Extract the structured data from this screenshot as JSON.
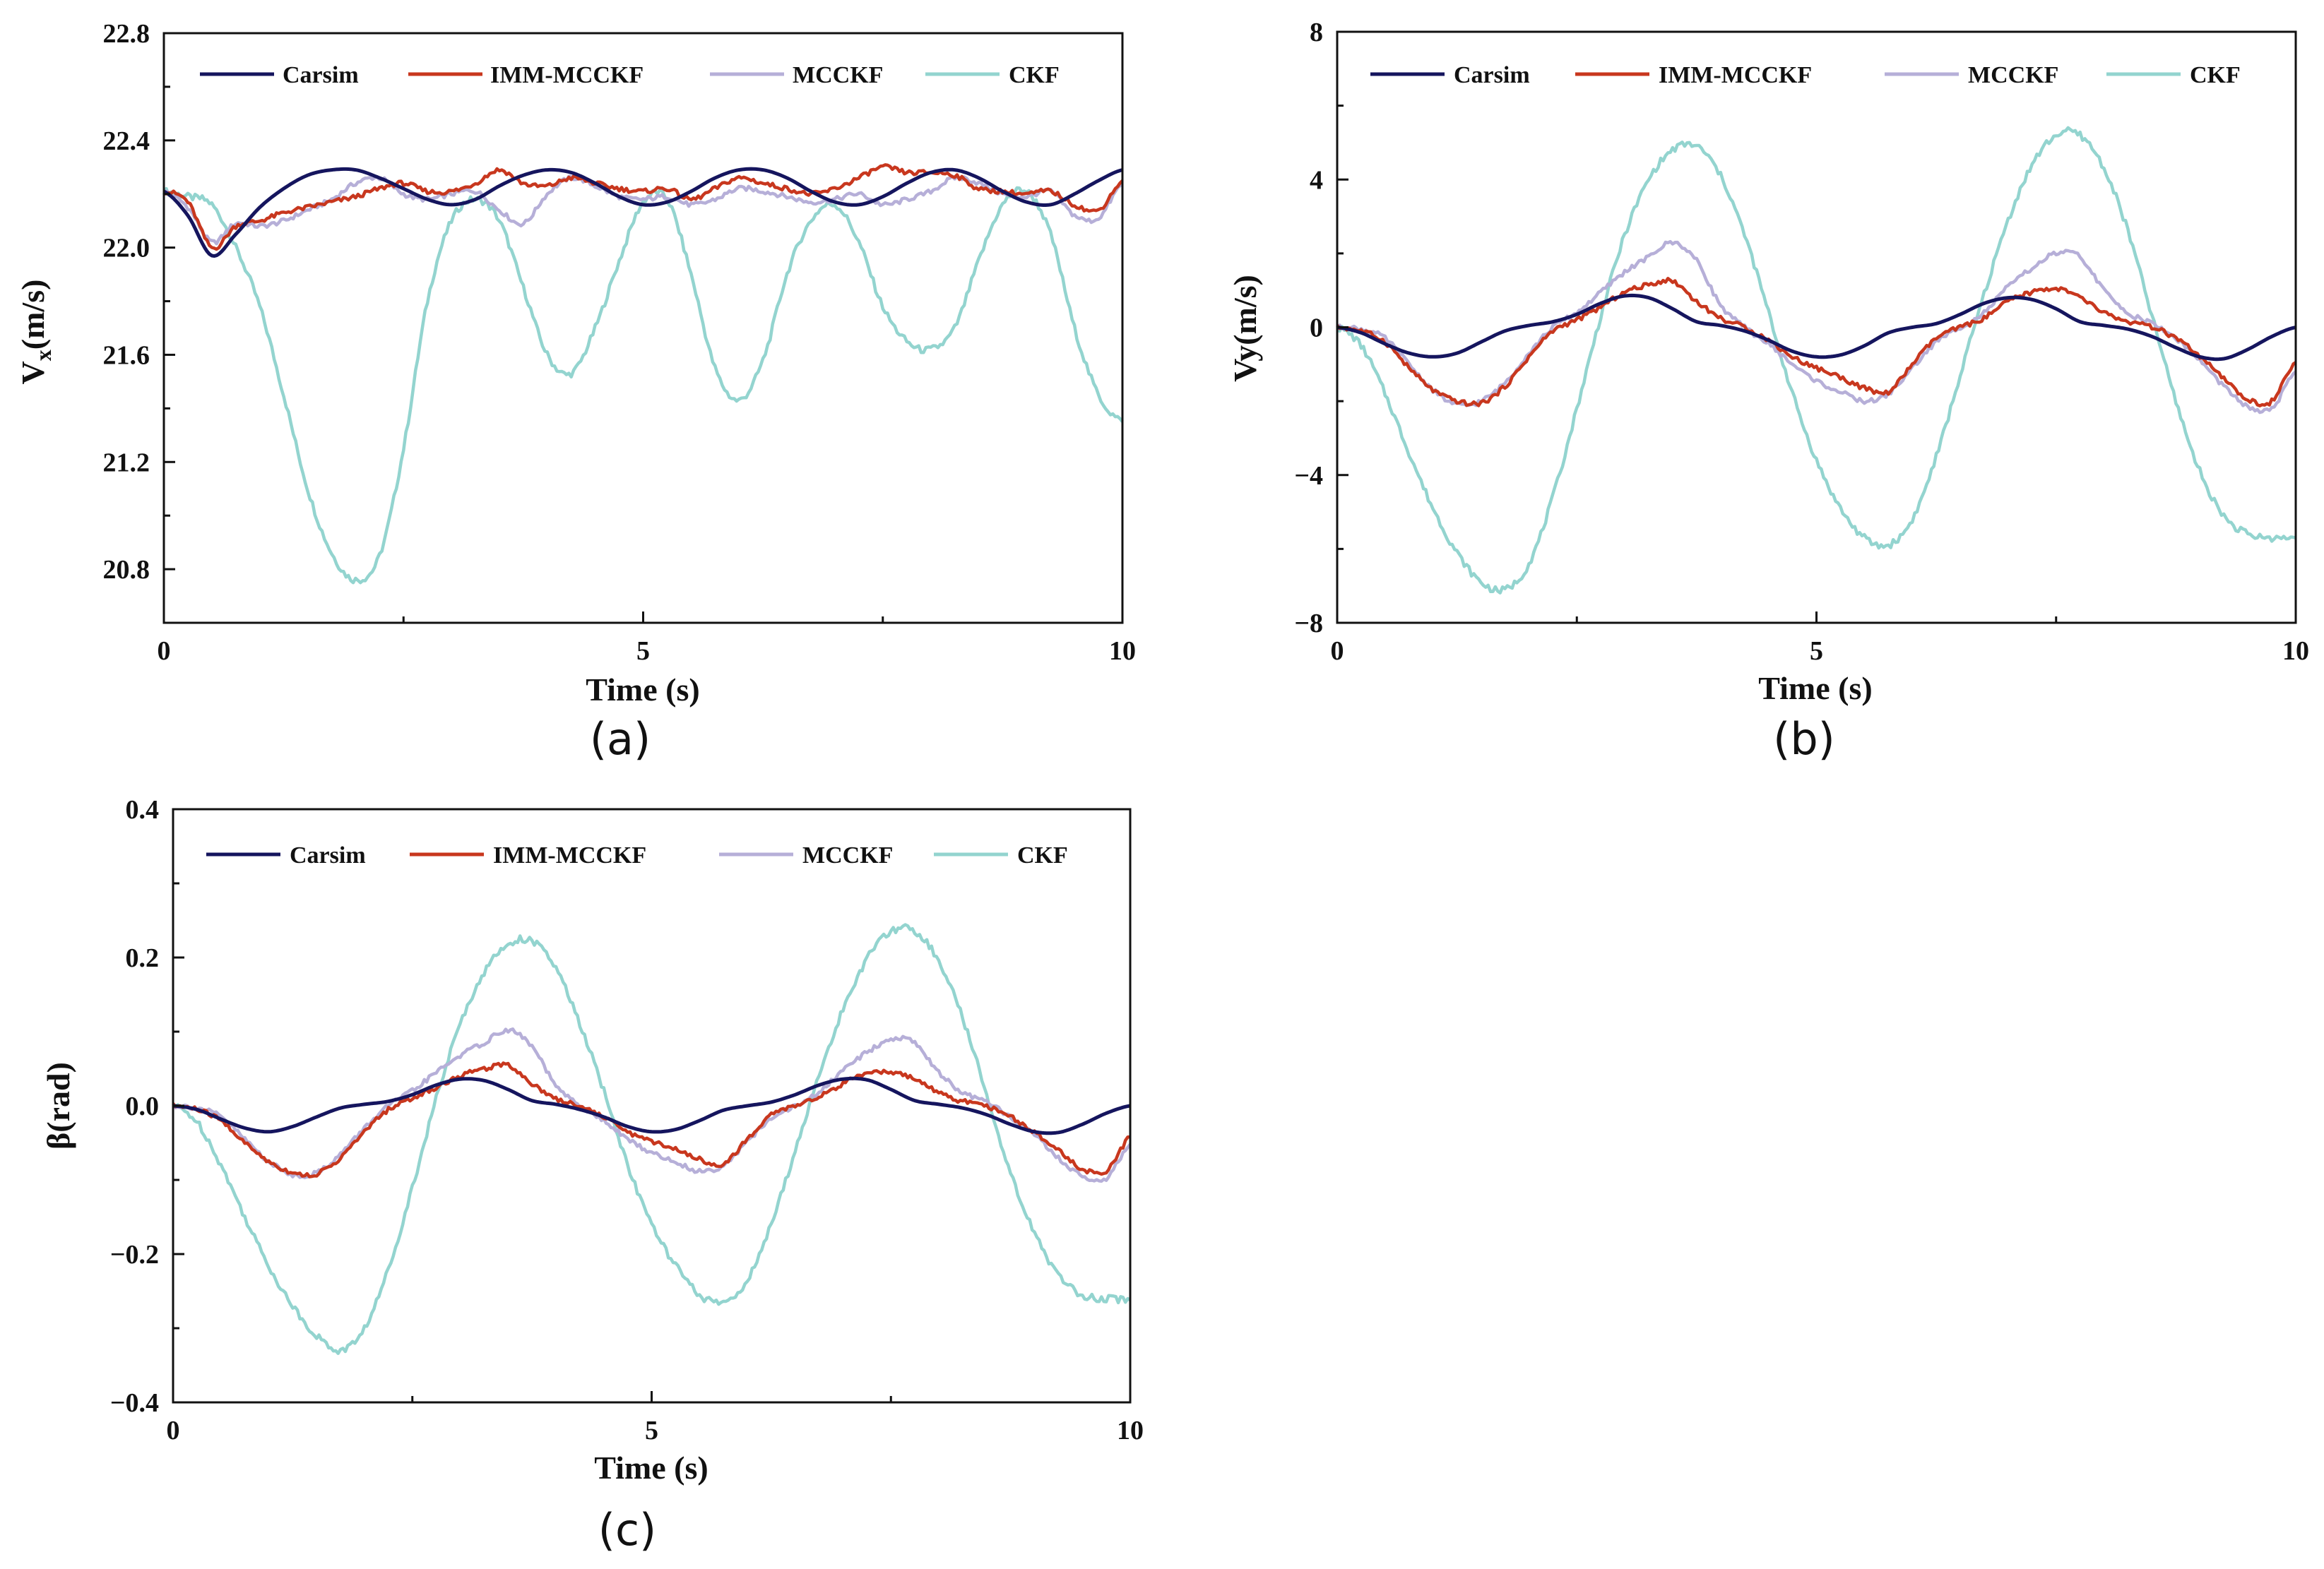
{
  "figure": {
    "colors": {
      "Carsim": "#15155e",
      "IMM-MCCKF": "#c8371e",
      "MCCKF": "#b6afd8",
      "CKF": "#93d4cf"
    }
  },
  "chart_data": [
    {
      "type": "line",
      "panel_label": "(a)",
      "xlabel": "Time (s)",
      "ylabel_main": "V",
      "ylabel_sub": "x",
      "ylabel_rest": "(m/s)",
      "xlim": [
        0,
        10
      ],
      "ylim": [
        20.6,
        22.8
      ],
      "xticks": [
        0,
        5,
        10
      ],
      "xtick_labels": [
        "0",
        "5",
        "10"
      ],
      "yticks": [
        20.8,
        21.2,
        21.6,
        22.0,
        22.4,
        22.8
      ],
      "ytick_labels": [
        "20.8",
        "21.2",
        "21.6",
        "22.0",
        "22.4",
        "22.8"
      ],
      "legend": [
        "Carsim",
        "IMM-MCCKF",
        "MCCKF",
        "CKF"
      ],
      "x": [
        0,
        0.25,
        0.5,
        0.75,
        1.0,
        1.25,
        1.5,
        1.75,
        2.0,
        2.25,
        2.5,
        2.75,
        3.0,
        3.25,
        3.5,
        3.75,
        4.0,
        4.25,
        4.5,
        4.75,
        5.0,
        5.25,
        5.5,
        5.75,
        6.0,
        6.25,
        6.5,
        6.75,
        7.0,
        7.25,
        7.5,
        7.75,
        8.0,
        8.25,
        8.5,
        8.75,
        9.0,
        9.25,
        9.5,
        9.75,
        10.0
      ],
      "series": [
        {
          "name": "Carsim",
          "values": [
            22.21,
            22.12,
            21.97,
            22.05,
            22.15,
            22.22,
            22.27,
            22.29,
            22.29,
            22.26,
            22.22,
            22.18,
            22.16,
            22.18,
            22.23,
            22.27,
            22.29,
            22.28,
            22.24,
            22.19,
            22.16,
            22.17,
            22.21,
            22.26,
            22.29,
            22.29,
            22.26,
            22.21,
            22.17,
            22.16,
            22.19,
            22.24,
            22.28,
            22.29,
            22.26,
            22.21,
            22.17,
            22.16,
            22.2,
            22.25,
            22.29
          ]
        },
        {
          "name": "IMM-MCCKF",
          "values": [
            22.21,
            22.17,
            22.0,
            22.08,
            22.1,
            22.13,
            22.15,
            22.17,
            22.19,
            22.22,
            22.24,
            22.21,
            22.21,
            22.24,
            22.29,
            22.24,
            22.23,
            22.26,
            22.24,
            22.22,
            22.21,
            22.22,
            22.18,
            22.22,
            22.26,
            22.24,
            22.22,
            22.2,
            22.22,
            22.26,
            22.3,
            22.28,
            22.28,
            22.27,
            22.22,
            22.21,
            22.2,
            22.21,
            22.16,
            22.14,
            22.25
          ]
        },
        {
          "name": "MCCKF",
          "values": [
            22.21,
            22.15,
            22.02,
            22.09,
            22.08,
            22.1,
            22.14,
            22.18,
            22.24,
            22.26,
            22.2,
            22.18,
            22.2,
            22.21,
            22.14,
            22.09,
            22.2,
            22.26,
            22.23,
            22.19,
            22.18,
            22.19,
            22.16,
            22.18,
            22.22,
            22.21,
            22.19,
            22.17,
            22.18,
            22.2,
            22.16,
            22.18,
            22.21,
            22.26,
            22.24,
            22.2,
            22.19,
            22.21,
            22.12,
            22.11,
            22.24
          ]
        },
        {
          "name": "CKF",
          "values": [
            22.21,
            22.19,
            22.16,
            22.0,
            21.78,
            21.45,
            21.1,
            20.86,
            20.76,
            20.85,
            21.25,
            21.8,
            22.1,
            22.18,
            22.1,
            21.85,
            21.6,
            21.53,
            21.7,
            21.95,
            22.17,
            22.18,
            21.9,
            21.55,
            21.43,
            21.58,
            21.9,
            22.1,
            22.16,
            22.02,
            21.78,
            21.65,
            21.62,
            21.7,
            21.95,
            22.16,
            22.21,
            22.05,
            21.7,
            21.45,
            21.35
          ]
        }
      ]
    },
    {
      "type": "line",
      "panel_label": "(b)",
      "xlabel": "Time (s)",
      "ylabel_main": "Vy(m/s)",
      "xlim": [
        0,
        10
      ],
      "ylim": [
        -8,
        8
      ],
      "xticks": [
        0,
        5,
        10
      ],
      "xtick_labels": [
        "0",
        "5",
        "10"
      ],
      "yticks": [
        -8,
        -4,
        0,
        4,
        8
      ],
      "ytick_labels": [
        "−8",
        "−4",
        "0",
        "4",
        "8"
      ],
      "legend": [
        "Carsim",
        "IMM-MCCKF",
        "MCCKF",
        "CKF"
      ],
      "x": [
        0,
        0.25,
        0.5,
        0.75,
        1.0,
        1.25,
        1.5,
        1.75,
        2.0,
        2.25,
        2.5,
        2.75,
        3.0,
        3.25,
        3.5,
        3.75,
        4.0,
        4.25,
        4.5,
        4.75,
        5.0,
        5.25,
        5.5,
        5.75,
        6.0,
        6.25,
        6.5,
        6.75,
        7.0,
        7.25,
        7.5,
        7.75,
        8.0,
        8.25,
        8.5,
        8.75,
        9.0,
        9.25,
        9.5,
        9.75,
        10.0
      ],
      "series": [
        {
          "name": "Carsim",
          "values": [
            0.0,
            -0.15,
            -0.45,
            -0.7,
            -0.8,
            -0.7,
            -0.4,
            -0.1,
            0.05,
            0.15,
            0.35,
            0.65,
            0.85,
            0.8,
            0.5,
            0.15,
            0.05,
            -0.1,
            -0.35,
            -0.65,
            -0.8,
            -0.75,
            -0.5,
            -0.15,
            0.0,
            0.1,
            0.35,
            0.65,
            0.8,
            0.75,
            0.5,
            0.15,
            0.05,
            -0.05,
            -0.25,
            -0.55,
            -0.8,
            -0.85,
            -0.6,
            -0.25,
            0.0
          ]
        },
        {
          "name": "IMM-MCCKF",
          "values": [
            0.0,
            -0.1,
            -0.4,
            -1.1,
            -1.7,
            -2.0,
            -2.05,
            -1.6,
            -0.8,
            -0.1,
            0.2,
            0.55,
            0.95,
            1.15,
            1.25,
            0.7,
            0.25,
            0.0,
            -0.35,
            -0.8,
            -1.1,
            -1.35,
            -1.65,
            -1.75,
            -1.0,
            -0.3,
            0.0,
            0.25,
            0.7,
            0.95,
            1.05,
            0.8,
            0.4,
            0.15,
            0.0,
            -0.3,
            -0.8,
            -1.4,
            -1.95,
            -2.0,
            -0.95
          ]
        },
        {
          "name": "MCCKF",
          "values": [
            0.0,
            -0.05,
            -0.3,
            -1.0,
            -1.7,
            -2.1,
            -2.0,
            -1.5,
            -0.7,
            0.0,
            0.4,
            0.95,
            1.5,
            1.9,
            2.3,
            1.8,
            0.6,
            0.0,
            -0.45,
            -1.0,
            -1.45,
            -1.75,
            -2.0,
            -1.8,
            -1.1,
            -0.4,
            0.0,
            0.4,
            1.1,
            1.6,
            2.0,
            1.9,
            1.0,
            0.4,
            0.1,
            -0.3,
            -0.9,
            -1.6,
            -2.15,
            -2.2,
            -1.2
          ]
        },
        {
          "name": "CKF",
          "values": [
            0.0,
            -0.5,
            -1.8,
            -3.4,
            -4.9,
            -6.1,
            -6.9,
            -7.1,
            -6.4,
            -4.6,
            -2.2,
            0.3,
            2.5,
            4.0,
            4.8,
            4.9,
            4.1,
            2.5,
            0.4,
            -1.8,
            -3.6,
            -4.9,
            -5.7,
            -5.9,
            -5.2,
            -3.5,
            -1.3,
            0.9,
            2.9,
            4.4,
            5.2,
            5.2,
            4.3,
            2.6,
            0.3,
            -2.0,
            -3.9,
            -5.1,
            -5.6,
            -5.7,
            -5.7
          ]
        }
      ]
    },
    {
      "type": "line",
      "panel_label": "(c)",
      "xlabel": "Time (s)",
      "ylabel_main": "β(rad)",
      "xlim": [
        0,
        10
      ],
      "ylim": [
        -0.4,
        0.4
      ],
      "xticks": [
        0,
        5,
        10
      ],
      "xtick_labels": [
        "0",
        "5",
        "10"
      ],
      "yticks": [
        -0.4,
        -0.2,
        0.0,
        0.2,
        0.4
      ],
      "ytick_labels": [
        "−0.4",
        "−0.2",
        "0.0",
        "0.2",
        "0.4"
      ],
      "legend": [
        "Carsim",
        "IMM-MCCKF",
        "MCCKF",
        "CKF"
      ],
      "x": [
        0,
        0.25,
        0.5,
        0.75,
        1.0,
        1.25,
        1.5,
        1.75,
        2.0,
        2.25,
        2.5,
        2.75,
        3.0,
        3.25,
        3.5,
        3.75,
        4.0,
        4.25,
        4.5,
        4.75,
        5.0,
        5.25,
        5.5,
        5.75,
        6.0,
        6.25,
        6.5,
        6.75,
        7.0,
        7.25,
        7.5,
        7.75,
        8.0,
        8.25,
        8.5,
        8.75,
        9.0,
        9.25,
        9.5,
        9.75,
        10.0
      ],
      "series": [
        {
          "name": "Carsim",
          "values": [
            0.0,
            -0.005,
            -0.018,
            -0.03,
            -0.035,
            -0.028,
            -0.015,
            -0.003,
            0.002,
            0.006,
            0.015,
            0.028,
            0.036,
            0.034,
            0.022,
            0.007,
            0.002,
            -0.005,
            -0.015,
            -0.028,
            -0.035,
            -0.032,
            -0.02,
            -0.006,
            0.0,
            0.005,
            0.015,
            0.028,
            0.036,
            0.035,
            0.022,
            0.007,
            0.002,
            -0.003,
            -0.012,
            -0.025,
            -0.035,
            -0.036,
            -0.025,
            -0.01,
            0.0
          ]
        },
        {
          "name": "IMM-MCCKF",
          "values": [
            0.0,
            -0.005,
            -0.02,
            -0.05,
            -0.075,
            -0.09,
            -0.092,
            -0.07,
            -0.035,
            -0.005,
            0.01,
            0.025,
            0.04,
            0.05,
            0.055,
            0.03,
            0.01,
            0.0,
            -0.015,
            -0.035,
            -0.048,
            -0.058,
            -0.072,
            -0.078,
            -0.045,
            -0.012,
            0.0,
            0.012,
            0.03,
            0.042,
            0.046,
            0.035,
            0.018,
            0.006,
            0.0,
            -0.015,
            -0.036,
            -0.06,
            -0.085,
            -0.088,
            -0.042
          ]
        },
        {
          "name": "MCCKF",
          "values": [
            0.0,
            -0.003,
            -0.015,
            -0.045,
            -0.075,
            -0.093,
            -0.09,
            -0.065,
            -0.03,
            0.0,
            0.02,
            0.045,
            0.068,
            0.085,
            0.102,
            0.08,
            0.027,
            0.0,
            -0.02,
            -0.045,
            -0.063,
            -0.076,
            -0.088,
            -0.08,
            -0.048,
            -0.018,
            0.0,
            0.018,
            0.048,
            0.072,
            0.09,
            0.085,
            0.045,
            0.018,
            0.004,
            -0.015,
            -0.04,
            -0.07,
            -0.095,
            -0.098,
            -0.052
          ]
        },
        {
          "name": "CKF",
          "values": [
            0.0,
            -0.022,
            -0.08,
            -0.15,
            -0.216,
            -0.27,
            -0.31,
            -0.33,
            -0.3,
            -0.22,
            -0.11,
            0.01,
            0.11,
            0.18,
            0.218,
            0.222,
            0.185,
            0.11,
            0.02,
            -0.08,
            -0.16,
            -0.215,
            -0.255,
            -0.265,
            -0.235,
            -0.16,
            -0.06,
            0.04,
            0.13,
            0.198,
            0.235,
            0.236,
            0.195,
            0.118,
            0.015,
            -0.09,
            -0.172,
            -0.228,
            -0.255,
            -0.26,
            -0.262
          ]
        }
      ]
    }
  ]
}
